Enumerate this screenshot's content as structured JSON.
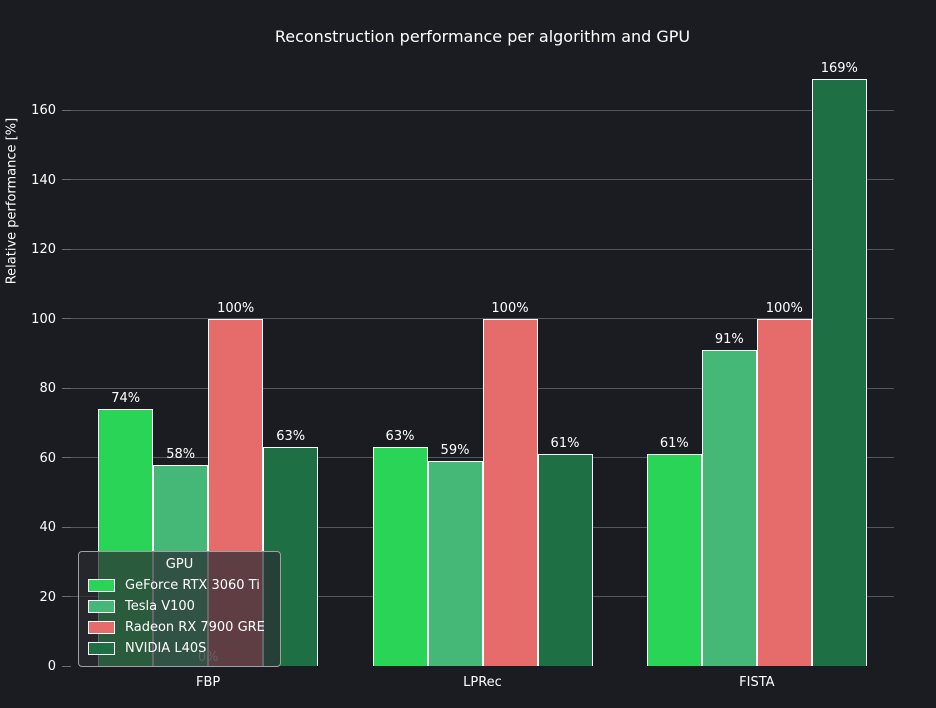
{
  "chart_data": {
    "type": "bar",
    "title": "Reconstruction performance per algorithm and GPU",
    "xlabel": "",
    "ylabel": "Relative performance [%]",
    "categories": [
      "FBP",
      "LPRec",
      "FISTA"
    ],
    "series": [
      {
        "name": "GeForce RTX 3060 Ti",
        "color": "#29d456",
        "values": [
          74,
          63,
          61
        ]
      },
      {
        "name": "Tesla V100",
        "color": "#45b877",
        "values": [
          58,
          59,
          91
        ]
      },
      {
        "name": "Radeon RX 7900 GRE",
        "color": "#e66c6c",
        "values": [
          100,
          100,
          100
        ]
      },
      {
        "name": "NVIDIA L40S",
        "color": "#1e7044",
        "values": [
          63,
          61,
          169
        ]
      }
    ],
    "bar_label_suffix": "%",
    "yticks": [
      0,
      20,
      40,
      60,
      80,
      100,
      120,
      140,
      160
    ],
    "ylim": [
      0,
      176.7
    ],
    "grid": "horizontal",
    "legend": {
      "title": "GPU",
      "position": "lower left"
    },
    "annotations": [
      {
        "text": "0%",
        "category": "FBP",
        "value": 0
      }
    ],
    "theme": {
      "background": "#1b1c21",
      "grid_color": "#54565b",
      "text_color": "#ffffff",
      "bar_edge_color": "#ffffff"
    }
  }
}
